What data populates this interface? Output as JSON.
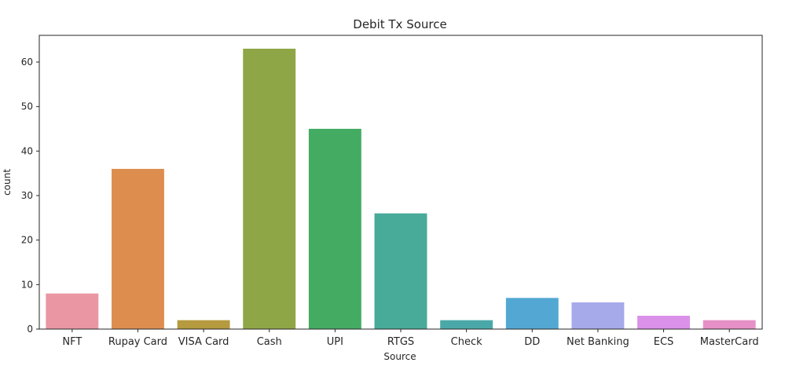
{
  "chart_data": {
    "type": "bar",
    "title": "Debit Tx Source",
    "xlabel": "Source",
    "ylabel": "count",
    "categories": [
      "NFT",
      "Rupay Card",
      "VISA Card",
      "Cash",
      "UPI",
      "RTGS",
      "Check",
      "DD",
      "Net Banking",
      "ECS",
      "MasterCard"
    ],
    "values": [
      8,
      36,
      2,
      63,
      45,
      26,
      2,
      7,
      6,
      3,
      2
    ],
    "colors": [
      "#ea96a3",
      "#dd8e4f",
      "#b59a3f",
      "#8ea646",
      "#44ab62",
      "#48aa99",
      "#4ba8a8",
      "#52a8d2",
      "#a6a9ea",
      "#db91e9",
      "#e690c7"
    ],
    "ylim": [
      0,
      66
    ],
    "yticks": [
      0,
      10,
      20,
      30,
      40,
      50,
      60
    ],
    "grid": false,
    "legend": "none"
  }
}
